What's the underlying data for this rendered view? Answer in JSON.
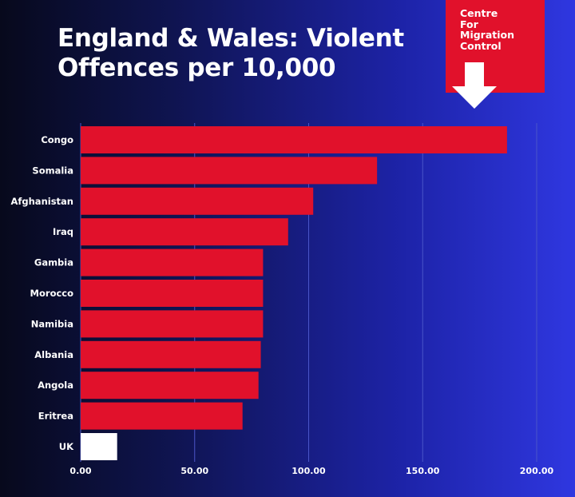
{
  "title": "England & Wales: Violent Offences per 10,000",
  "badge": {
    "text": "Centre\nFor\nMigration\nControl",
    "color": "#e1112b"
  },
  "colors": {
    "bar": "#e1112b",
    "highlight_bar": "#ffffff",
    "gridline": "#4a55c8"
  },
  "chart_data": {
    "type": "bar",
    "orientation": "horizontal",
    "categories": [
      "Congo",
      "Somalia",
      "Afghanistan",
      "Iraq",
      "Gambia",
      "Morocco",
      "Namibia",
      "Albania",
      "Angola",
      "Eritrea",
      "UK"
    ],
    "values": [
      187,
      130,
      102,
      91,
      80,
      80,
      80,
      79,
      78,
      71,
      16
    ],
    "highlight": "UK",
    "title": "England & Wales: Violent Offences per 10,000",
    "xlim": [
      0,
      200
    ],
    "xticks": [
      "0.00",
      "50.00",
      "100.00",
      "150.00",
      "200.00"
    ],
    "xtick_values": [
      0,
      50,
      100,
      150,
      200
    ],
    "grid": "vertical",
    "legend": "none"
  }
}
